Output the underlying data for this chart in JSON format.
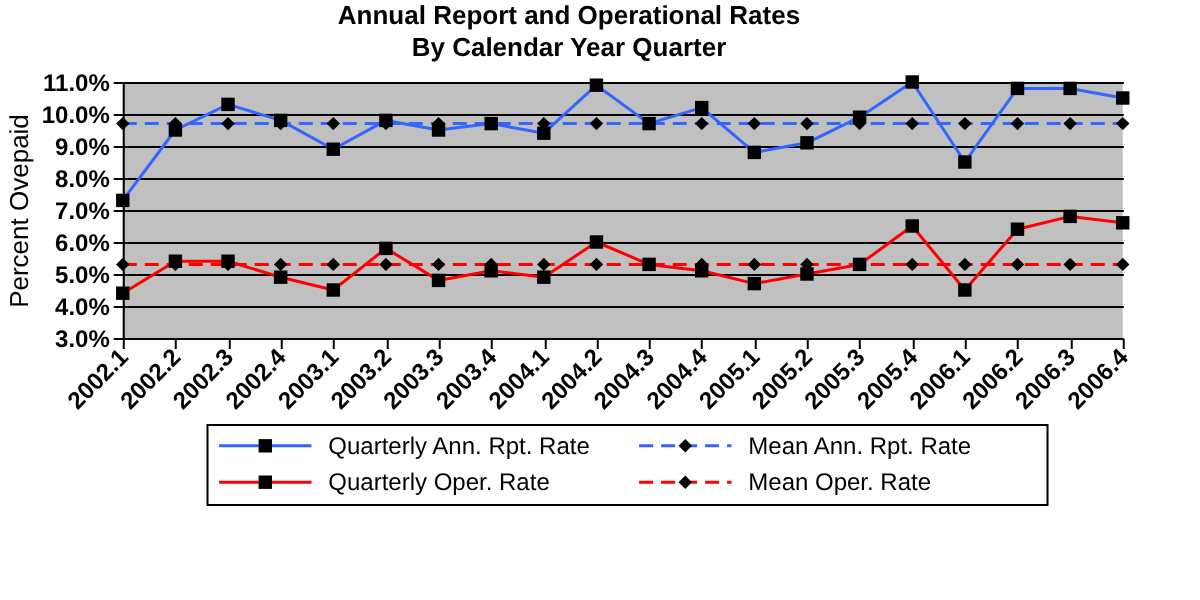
{
  "chart_data": {
    "type": "line",
    "title": "Annual Report and Operational Rates",
    "subtitle": "By Calendar Year Quarter",
    "ylabel": "Percent Ovepaid",
    "categories": [
      "2002.1",
      "2002.2",
      "2002.3",
      "2002.4",
      "2003.1",
      "2003.2",
      "2003.3",
      "2003.4",
      "2004.1",
      "2004.2",
      "2004.3",
      "2004.4",
      "2005.1",
      "2005.2",
      "2005.3",
      "2005.4",
      "2006.1",
      "2006.2",
      "2006.3",
      "2006.4"
    ],
    "series": [
      {
        "name": "Quarterly Ann. Rpt. Rate",
        "color": "#3366ff",
        "marker": "square",
        "line_style": "solid",
        "values": [
          7.3,
          9.5,
          10.3,
          9.8,
          8.9,
          9.8,
          9.5,
          9.7,
          9.4,
          10.9,
          9.7,
          10.2,
          8.8,
          9.1,
          9.9,
          11.0,
          8.5,
          10.8,
          10.8,
          10.5
        ]
      },
      {
        "name": "Mean Ann. Rpt. Rate",
        "color": "#3366ff",
        "marker": "diamond",
        "line_style": "dashed",
        "values": [
          9.7,
          9.7,
          9.7,
          9.7,
          9.7,
          9.7,
          9.7,
          9.7,
          9.7,
          9.7,
          9.7,
          9.7,
          9.7,
          9.7,
          9.7,
          9.7,
          9.7,
          9.7,
          9.7,
          9.7
        ]
      },
      {
        "name": "Quarterly Oper. Rate",
        "color": "#ff0000",
        "marker": "square",
        "line_style": "solid",
        "values": [
          4.4,
          5.4,
          5.4,
          4.9,
          4.5,
          5.8,
          4.8,
          5.1,
          4.9,
          6.0,
          5.3,
          5.1,
          4.7,
          5.0,
          5.3,
          6.5,
          4.5,
          6.4,
          6.8,
          6.6
        ]
      },
      {
        "name": "Mean Oper. Rate",
        "color": "#ff0000",
        "marker": "diamond",
        "line_style": "dashed",
        "values": [
          5.3,
          5.3,
          5.3,
          5.3,
          5.3,
          5.3,
          5.3,
          5.3,
          5.3,
          5.3,
          5.3,
          5.3,
          5.3,
          5.3,
          5.3,
          5.3,
          5.3,
          5.3,
          5.3,
          5.3
        ]
      }
    ],
    "ylim": [
      3,
      11
    ],
    "yticks": [
      {
        "value": 3,
        "label": "3.0%"
      },
      {
        "value": 4,
        "label": "4.0%"
      },
      {
        "value": 5,
        "label": "5.0%"
      },
      {
        "value": 6,
        "label": "6.0%"
      },
      {
        "value": 7,
        "label": "7.0%"
      },
      {
        "value": 8,
        "label": "8.0%"
      },
      {
        "value": 9,
        "label": "9.0%"
      },
      {
        "value": 10,
        "label": "10.0%"
      },
      {
        "value": 11,
        "label": "11.0%"
      }
    ],
    "grid": "y",
    "legend": "bottom"
  }
}
